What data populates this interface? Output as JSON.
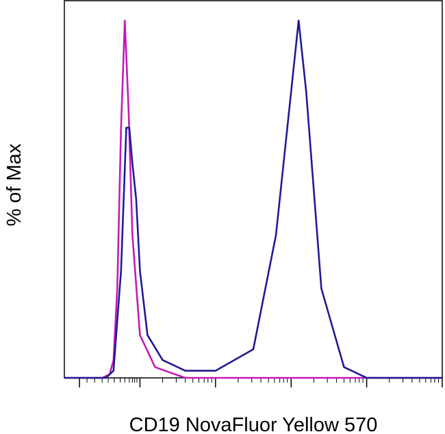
{
  "chart_data": {
    "type": "area",
    "title": "",
    "xlabel": "CD19 NovaFluor Yellow 570",
    "ylabel": "% of Max",
    "x_scale": "biexponential",
    "x_tick_labels_shown": false,
    "y_tick_labels_shown": false,
    "ylim": [
      0,
      100
    ],
    "grid": false,
    "legend": "none",
    "series": [
      {
        "color": "#c21ab8",
        "x": [
          0.0,
          0.5,
          0.6,
          0.65,
          0.7,
          0.75,
          0.8,
          0.85,
          0.9,
          1.0,
          1.2,
          1.6,
          2.2,
          3.0,
          4.2,
          5.0
        ],
        "y": [
          0,
          0,
          1,
          5,
          25,
          70,
          100,
          75,
          40,
          12,
          3,
          0,
          0,
          0,
          0,
          0
        ]
      },
      {
        "color": "#1f1a96",
        "x": [
          0.0,
          0.55,
          0.65,
          0.75,
          0.82,
          0.86,
          0.9,
          0.95,
          1.0,
          1.1,
          1.3,
          1.6,
          2.0,
          2.5,
          2.8,
          3.0,
          3.1,
          3.2,
          3.4,
          3.7,
          4.0,
          4.5,
          5.0
        ],
        "y": [
          0,
          0,
          2,
          30,
          70,
          70,
          60,
          50,
          30,
          12,
          5,
          2,
          2,
          8,
          40,
          80,
          100,
          80,
          25,
          3,
          0,
          0,
          0
        ]
      }
    ]
  }
}
